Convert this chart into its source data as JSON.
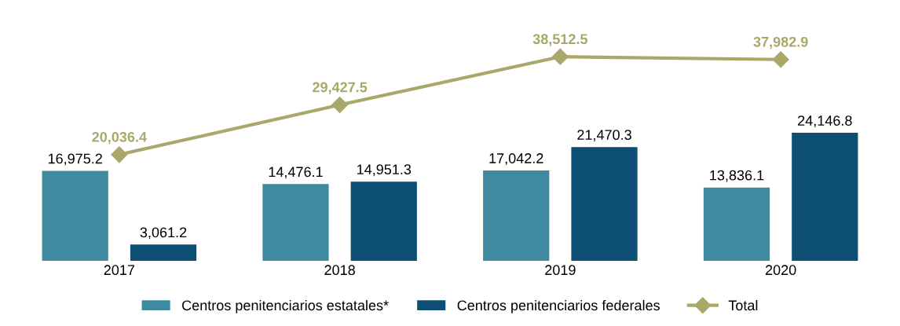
{
  "chart_data": {
    "type": "bar",
    "categories": [
      "2017",
      "2018",
      "2019",
      "2020"
    ],
    "data_labels": true,
    "legend": "bottom",
    "grid": false,
    "tick_labels": "x",
    "series": [
      {
        "name": "Centros penitenciarios estatales*",
        "color": "#3f8a9e",
        "values": [
          16975.2,
          14476.1,
          17042.2,
          13836.1
        ],
        "value_labels": [
          "16,975.2",
          "14,476.1",
          "17,042.2",
          "13,836.1"
        ]
      },
      {
        "name": "Centros penitenciarios federales",
        "color": "#0d4f74",
        "values": [
          3061.2,
          14951.3,
          21470.3,
          24146.8
        ],
        "value_labels": [
          "3,061.2",
          "14,951.3",
          "21,470.3",
          "24,146.8"
        ]
      },
      {
        "name": "Total",
        "type": "line",
        "color": "#a9a86a",
        "marker": "diamond",
        "values": [
          20036.4,
          29427.5,
          38512.5,
          37982.9
        ],
        "value_labels": [
          "20,036.4",
          "29,427.5",
          "38,512.5",
          "37,982.9"
        ]
      }
    ]
  }
}
